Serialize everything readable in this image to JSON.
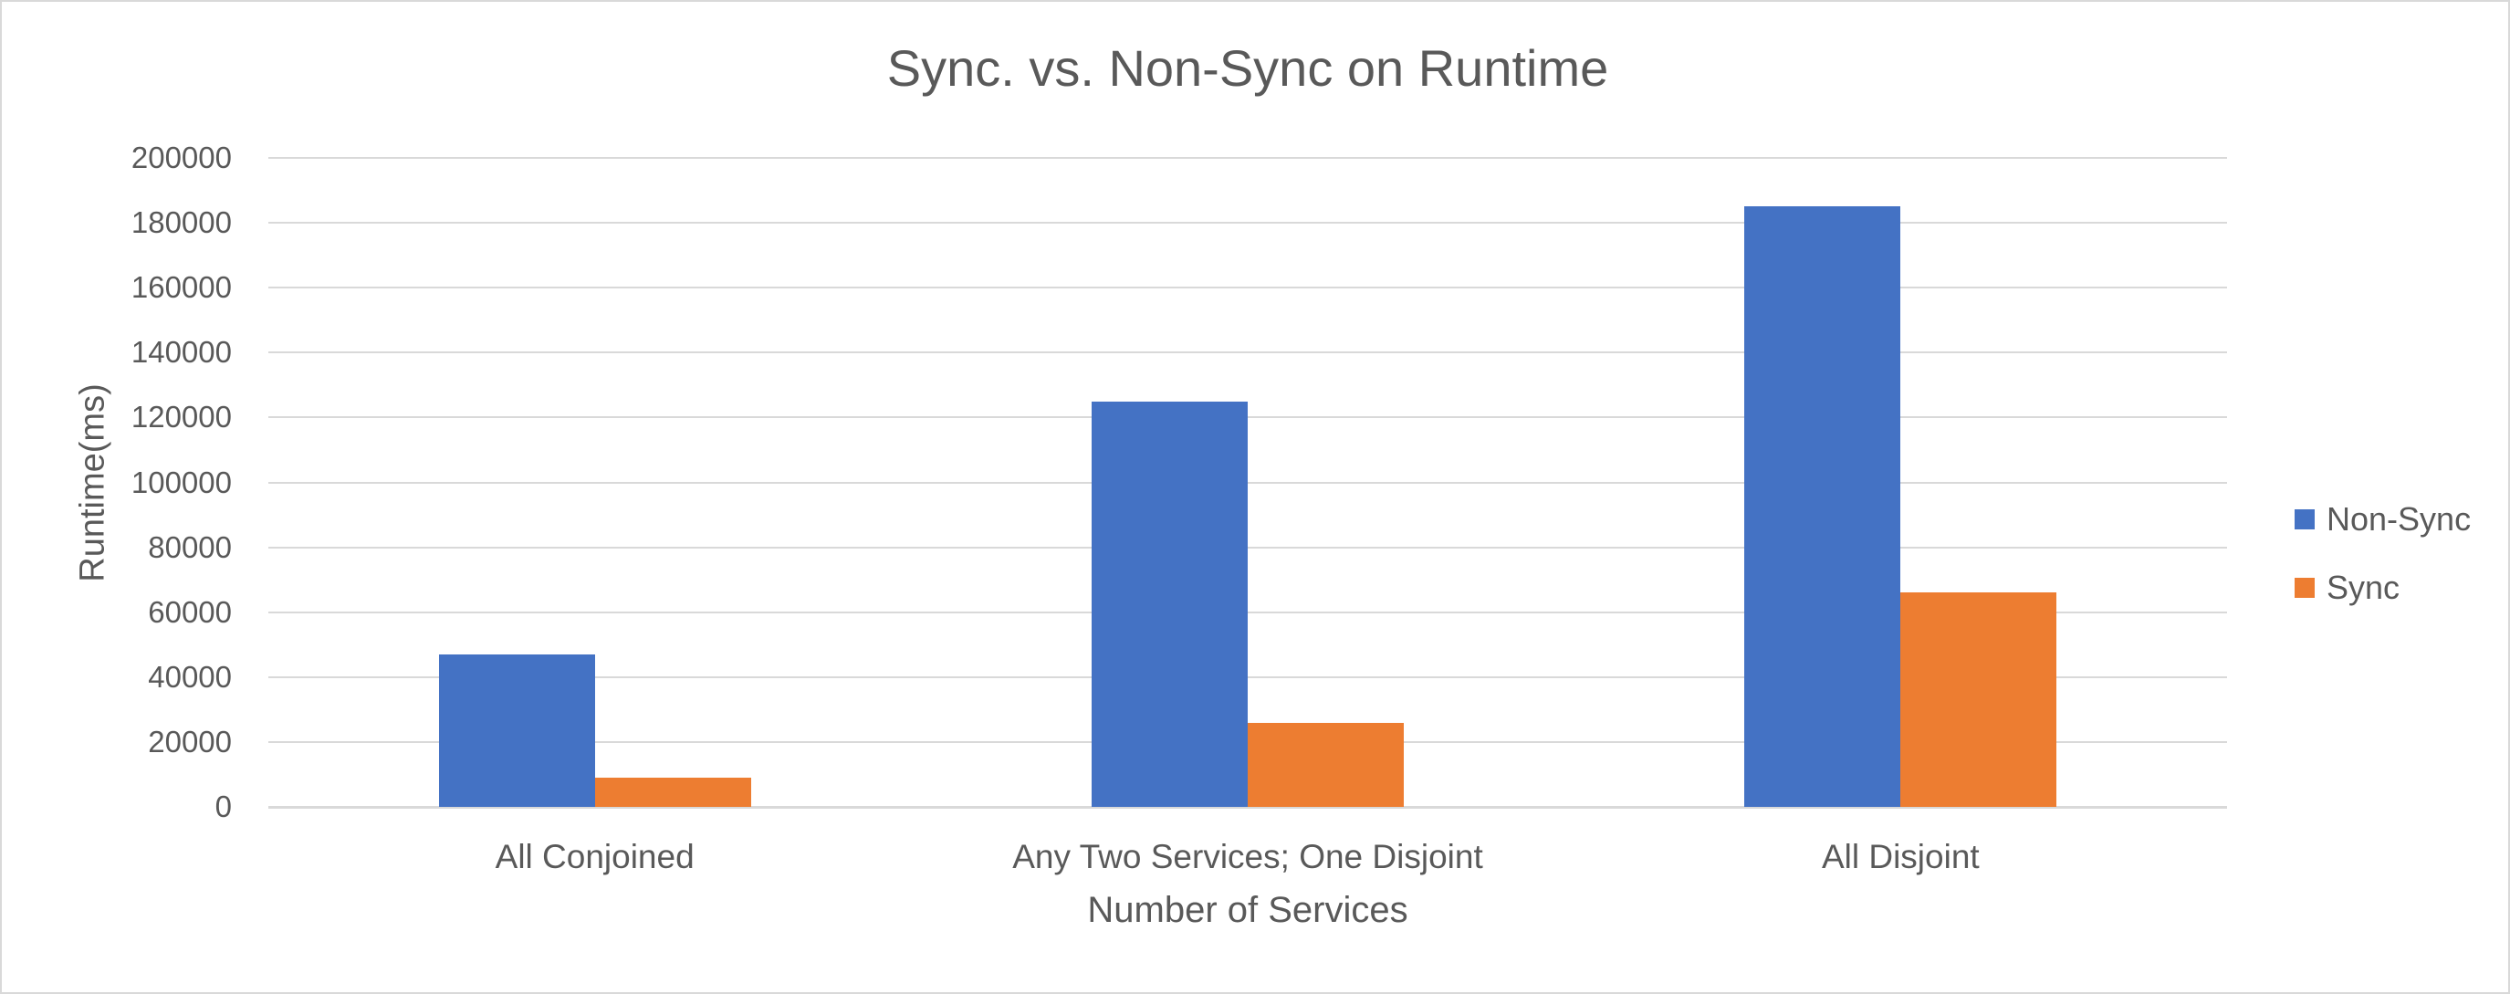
{
  "chart_data": {
    "type": "bar",
    "title": "Sync. vs. Non-Sync on Runtime",
    "xlabel": "Number of Services",
    "ylabel": "Runtime(ms)",
    "categories": [
      "All Conjoined",
      "Any Two Services; One Disjoint",
      "All Disjoint"
    ],
    "series": [
      {
        "name": "Non-Sync",
        "color": "#4472C4",
        "values": [
          47000,
          125000,
          185000
        ]
      },
      {
        "name": "Sync",
        "color": "#ED7D31",
        "values": [
          9000,
          26000,
          66000
        ]
      }
    ],
    "ylim": [
      0,
      200000
    ],
    "yticks": [
      0,
      20000,
      40000,
      60000,
      80000,
      100000,
      120000,
      140000,
      160000,
      180000,
      200000
    ],
    "grid": true,
    "legend_position": "right"
  },
  "colors": {
    "text": "#595959",
    "gridline": "#D9D9D9",
    "border": "#D9D9D9",
    "background": "#FFFFFF"
  }
}
